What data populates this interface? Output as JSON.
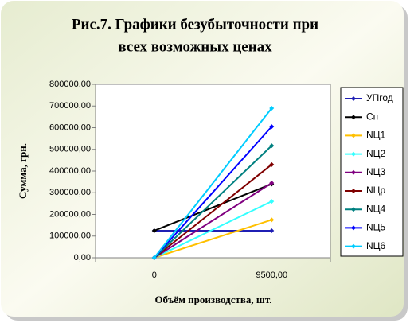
{
  "chart_data": {
    "type": "line",
    "title": [
      "Рис.7. Графики безубыточности при",
      "всех возможных ценах"
    ],
    "x_label": "Объём производства, шт.",
    "y_label": "Сумма, грн.",
    "categories": [
      "0",
      "9500,00"
    ],
    "ylim": [
      0,
      800000
    ],
    "yticks": [
      {
        "value": 0,
        "label": "0,00"
      },
      {
        "value": 100000,
        "label": "100000,00"
      },
      {
        "value": 200000,
        "label": "200000,00"
      },
      {
        "value": 300000,
        "label": "300000,00"
      },
      {
        "value": 400000,
        "label": "400000,00"
      },
      {
        "value": 500000,
        "label": "500000,00"
      },
      {
        "value": 600000,
        "label": "600000,00"
      },
      {
        "value": 700000,
        "label": "700000,00"
      },
      {
        "value": 800000,
        "label": "800000,00"
      }
    ],
    "legend": "right",
    "series": [
      {
        "name": "УПгод",
        "color": "#1f1fb4",
        "values": [
          125000,
          125000
        ]
      },
      {
        "name": "Сп",
        "color": "#000000",
        "values": [
          125000,
          340000
        ]
      },
      {
        "name": "NЦ1",
        "color": "#ffc000",
        "values": [
          0,
          175000
        ]
      },
      {
        "name": "NЦ2",
        "color": "#33ffff",
        "values": [
          0,
          260000
        ]
      },
      {
        "name": "NЦ3",
        "color": "#800080",
        "values": [
          0,
          345000
        ]
      },
      {
        "name": "NЦр",
        "color": "#800000",
        "values": [
          0,
          430000
        ]
      },
      {
        "name": "NЦ4",
        "color": "#008080",
        "values": [
          0,
          517000
        ]
      },
      {
        "name": "NЦ5",
        "color": "#0000ff",
        "values": [
          0,
          605000
        ]
      },
      {
        "name": "NЦ6",
        "color": "#00ccff",
        "values": [
          0,
          690000
        ]
      }
    ]
  }
}
